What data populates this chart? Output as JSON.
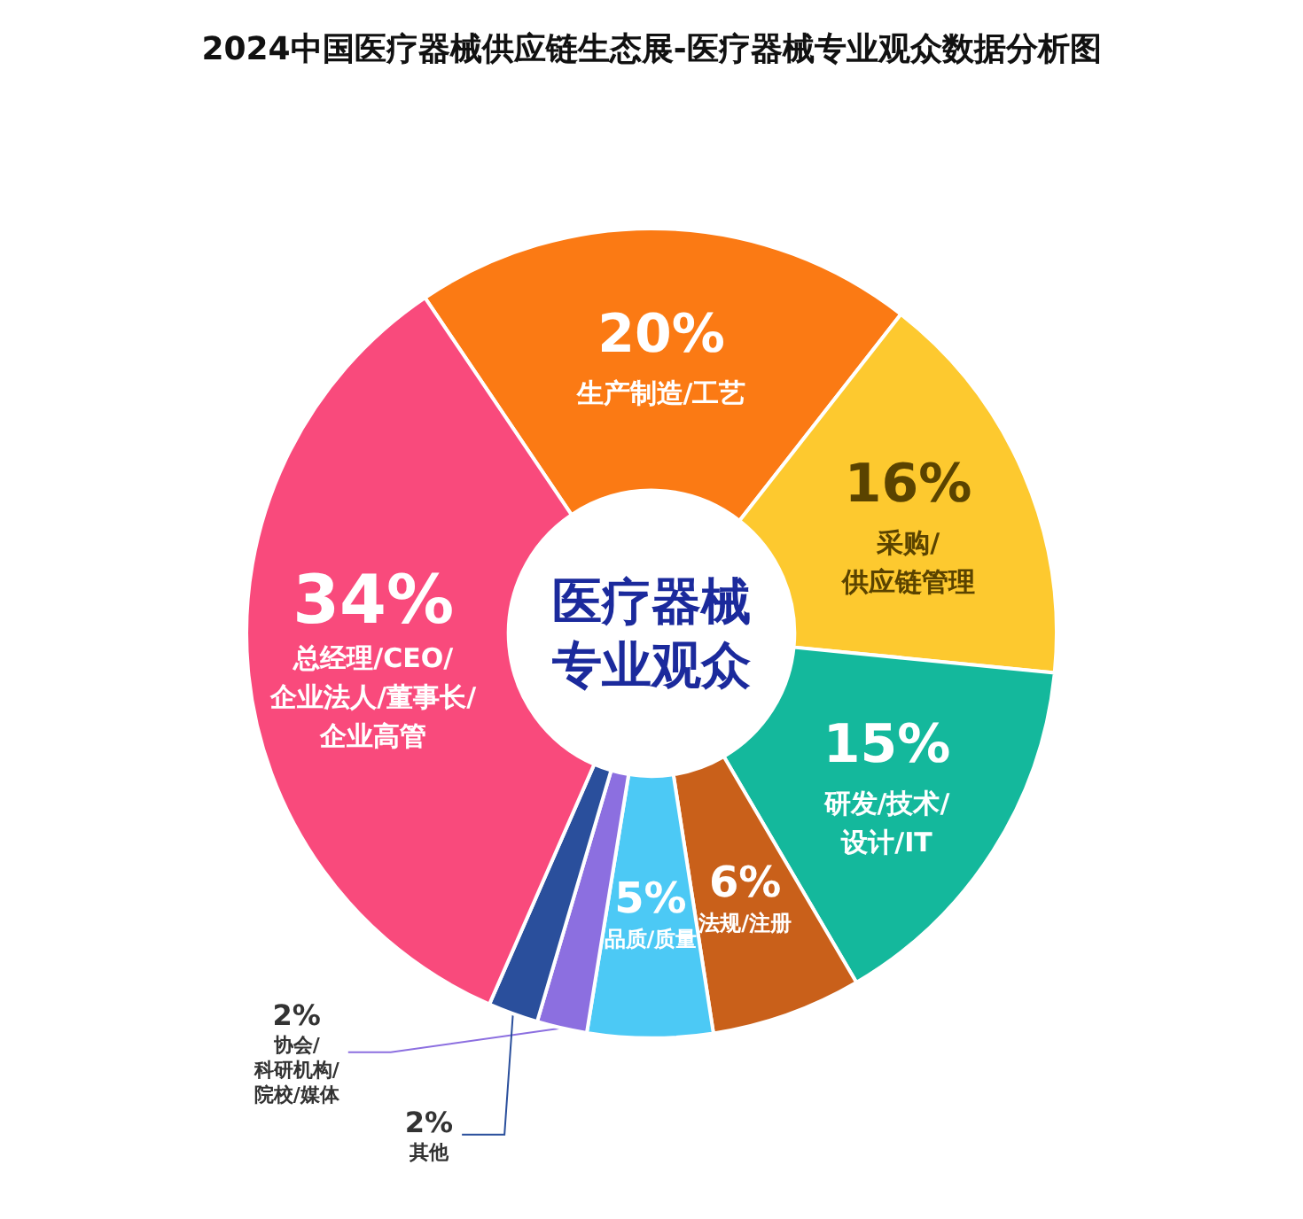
{
  "chart_data": {
    "type": "donut",
    "title": "2024中国医疗器械供应链生态展-医疗器械专业观众数据分析图",
    "annotations": [
      "医疗器械专业观众"
    ],
    "categories": [
      "生产制造/工艺",
      "采购/供应链管理",
      "研发/技术/设计/IT",
      "法规/注册",
      "品质/质量",
      "协会/科研机构/院校/媒体",
      "其他",
      "总经理/CEO/企业法人/董事长/企业高管"
    ],
    "values": [
      20,
      16,
      15,
      6,
      5,
      2,
      2,
      34
    ],
    "value_labels": [
      "20%",
      "16%",
      "15%",
      "6%",
      "5%",
      "2%",
      "2%",
      "34%"
    ],
    "colors": [
      "#fb7a14",
      "#fdc92f",
      "#14b89c",
      "#c9601a",
      "#4cc9f5",
      "#8c6fe0",
      "#2a4f9c",
      "#f94a7c"
    ],
    "legend": false
  }
}
